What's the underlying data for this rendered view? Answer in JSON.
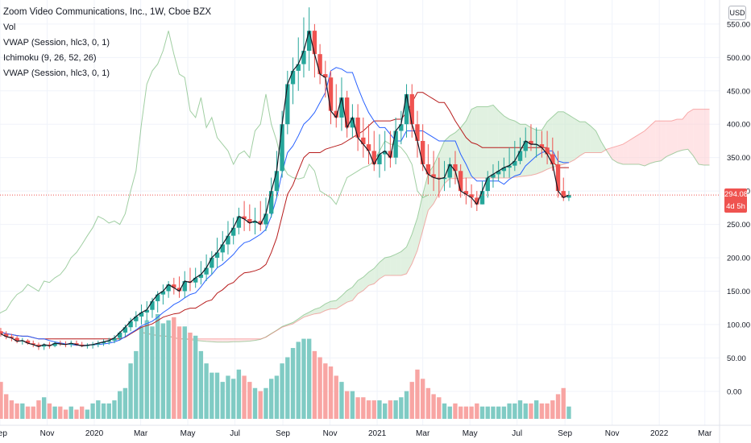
{
  "header": {
    "title": "Zoom Video Communications, Inc., 1W, Cboe BZX",
    "indicators": [
      "Vol",
      "VWAP (Session, hlc3, 0, 1)",
      "Ichimoku (9, 26, 52, 26)",
      "VWAP (Session, hlc3, 0, 1)"
    ],
    "currency": "USD"
  },
  "price_label": {
    "value": "294.08",
    "countdown": "4d 5h"
  },
  "colors": {
    "up": "#26a69a",
    "down": "#ef5350",
    "vwap": "#e91e63",
    "conversion": "#2962ff",
    "base": "#b71c1c",
    "lagging": "#43a047",
    "cloud_up": "#c8e6c9",
    "cloud_down": "#ffcdd2",
    "volume_up": "#80cbc4",
    "volume_down": "#f8a5a3"
  },
  "chart_data": {
    "type": "candlestick",
    "title": "Zoom Video Communications, Inc., 1W, Cboe BZX",
    "y_ticks": [
      "550.00",
      "500.00",
      "450.00",
      "400.00",
      "350.00",
      "300.00",
      "250.00",
      "200.00",
      "150.00",
      "100.00",
      "50.00",
      "0.00"
    ],
    "y_tick_values": [
      550,
      500,
      450,
      400,
      350,
      300,
      250,
      200,
      150,
      100,
      50,
      0
    ],
    "x_ticks": [
      "Sep",
      "Nov",
      "2020",
      "Mar",
      "May",
      "Jul",
      "Sep",
      "Nov",
      "2021",
      "Mar",
      "May",
      "Jul",
      "Sep",
      "Nov",
      "2022",
      "Mar"
    ],
    "x_tick_dates": [
      "2019-09-01",
      "2019-11-01",
      "2020-01-01",
      "2020-03-01",
      "2020-05-01",
      "2020-07-01",
      "2020-09-01",
      "2020-11-01",
      "2021-01-01",
      "2021-03-01",
      "2021-05-01",
      "2021-07-01",
      "2021-09-01",
      "2021-11-01",
      "2022-01-01",
      "2022-03-01"
    ],
    "x_range": [
      "2019-09-01",
      "2022-03-20"
    ],
    "ylim": [
      -40,
      580
    ],
    "ohlc": {
      "dates": [
        "2019-09-02",
        "2019-09-09",
        "2019-09-16",
        "2019-09-23",
        "2019-09-30",
        "2019-10-07",
        "2019-10-14",
        "2019-10-21",
        "2019-10-28",
        "2019-11-04",
        "2019-11-11",
        "2019-11-18",
        "2019-11-25",
        "2019-12-02",
        "2019-12-09",
        "2019-12-16",
        "2019-12-23",
        "2019-12-30",
        "2020-01-06",
        "2020-01-13",
        "2020-01-20",
        "2020-01-27",
        "2020-02-03",
        "2020-02-10",
        "2020-02-17",
        "2020-02-24",
        "2020-03-02",
        "2020-03-09",
        "2020-03-16",
        "2020-03-23",
        "2020-03-30",
        "2020-04-06",
        "2020-04-13",
        "2020-04-20",
        "2020-04-27",
        "2020-05-04",
        "2020-05-11",
        "2020-05-18",
        "2020-05-25",
        "2020-06-01",
        "2020-06-08",
        "2020-06-15",
        "2020-06-22",
        "2020-06-29",
        "2020-07-06",
        "2020-07-13",
        "2020-07-20",
        "2020-07-27",
        "2020-08-03",
        "2020-08-10",
        "2020-08-17",
        "2020-08-24",
        "2020-08-31",
        "2020-09-07",
        "2020-09-14",
        "2020-09-21",
        "2020-09-28",
        "2020-10-05",
        "2020-10-12",
        "2020-10-19",
        "2020-10-26",
        "2020-11-02",
        "2020-11-09",
        "2020-11-16",
        "2020-11-23",
        "2020-11-30",
        "2020-12-07",
        "2020-12-14",
        "2020-12-21",
        "2020-12-28",
        "2021-01-04",
        "2021-01-11",
        "2021-01-18",
        "2021-01-25",
        "2021-02-01",
        "2021-02-08",
        "2021-02-15",
        "2021-02-22",
        "2021-03-01",
        "2021-03-08",
        "2021-03-15",
        "2021-03-22",
        "2021-03-29",
        "2021-04-05",
        "2021-04-12",
        "2021-04-19",
        "2021-04-26",
        "2021-05-03",
        "2021-05-10",
        "2021-05-17",
        "2021-05-24",
        "2021-05-31",
        "2021-06-07",
        "2021-06-14",
        "2021-06-21",
        "2021-06-28",
        "2021-07-05",
        "2021-07-12",
        "2021-07-19",
        "2021-07-26",
        "2021-08-02",
        "2021-08-09",
        "2021-08-16",
        "2021-08-23",
        "2021-08-30",
        "2021-09-06"
      ],
      "open": [
        90,
        86,
        82,
        80,
        75,
        76,
        72,
        70,
        67,
        70,
        68,
        72,
        71,
        70,
        72,
        70,
        68,
        69,
        70,
        72,
        74,
        76,
        80,
        88,
        96,
        105,
        112,
        118,
        122,
        135,
        145,
        150,
        160,
        155,
        150,
        165,
        163,
        170,
        175,
        185,
        200,
        208,
        220,
        233,
        245,
        262,
        258,
        252,
        255,
        250,
        266,
        300,
        330,
        400,
        460,
        480,
        490,
        510,
        540,
        505,
        475,
        470,
        420,
        410,
        440,
        395,
        410,
        380,
        370,
        360,
        340,
        355,
        360,
        350,
        390,
        400,
        445,
        400,
        375,
        340,
        325,
        320,
        318,
        320,
        340,
        330,
        300,
        295,
        290,
        280,
        300,
        320,
        325,
        330,
        335,
        338,
        345,
        360,
        375,
        370,
        370,
        365,
        355,
        340,
        300,
        290
      ],
      "high": [
        95,
        90,
        86,
        83,
        80,
        78,
        76,
        73,
        72,
        74,
        75,
        76,
        75,
        76,
        76,
        74,
        72,
        74,
        76,
        78,
        80,
        84,
        90,
        100,
        110,
        120,
        130,
        135,
        140,
        150,
        160,
        165,
        170,
        172,
        180,
        185,
        185,
        195,
        205,
        210,
        230,
        240,
        255,
        260,
        275,
        285,
        280,
        275,
        285,
        290,
        320,
        360,
        420,
        480,
        500,
        530,
        560,
        575,
        550,
        520,
        495,
        480,
        460,
        470,
        450,
        430,
        430,
        410,
        400,
        390,
        385,
        390,
        390,
        410,
        420,
        460,
        460,
        420,
        400,
        370,
        360,
        350,
        345,
        350,
        360,
        340,
        320,
        310,
        300,
        315,
        330,
        340,
        345,
        350,
        365,
        375,
        380,
        395,
        400,
        395,
        390,
        390,
        380,
        360,
        320,
        300
      ],
      "low": [
        82,
        78,
        75,
        72,
        70,
        70,
        66,
        62,
        62,
        64,
        66,
        68,
        66,
        66,
        68,
        66,
        64,
        64,
        66,
        68,
        70,
        72,
        76,
        82,
        90,
        96,
        100,
        105,
        110,
        118,
        130,
        140,
        145,
        140,
        140,
        150,
        155,
        160,
        165,
        175,
        185,
        195,
        205,
        220,
        235,
        240,
        240,
        235,
        240,
        240,
        260,
        290,
        320,
        385,
        430,
        450,
        470,
        480,
        470,
        460,
        440,
        400,
        395,
        390,
        380,
        380,
        360,
        350,
        340,
        330,
        320,
        330,
        335,
        340,
        370,
        380,
        380,
        350,
        330,
        310,
        300,
        290,
        300,
        305,
        310,
        290,
        280,
        275,
        270,
        280,
        290,
        305,
        315,
        320,
        320,
        330,
        340,
        350,
        360,
        350,
        350,
        340,
        330,
        290,
        285,
        285
      ],
      "close": [
        86,
        82,
        80,
        75,
        76,
        72,
        70,
        67,
        70,
        68,
        72,
        71,
        70,
        72,
        70,
        68,
        69,
        70,
        72,
        74,
        76,
        80,
        88,
        96,
        105,
        112,
        118,
        122,
        135,
        145,
        150,
        160,
        155,
        150,
        165,
        163,
        170,
        175,
        185,
        200,
        208,
        220,
        233,
        245,
        262,
        258,
        252,
        255,
        250,
        266,
        300,
        330,
        400,
        460,
        480,
        490,
        510,
        540,
        505,
        475,
        470,
        420,
        410,
        440,
        395,
        410,
        380,
        370,
        360,
        340,
        355,
        360,
        350,
        390,
        400,
        445,
        400,
        375,
        340,
        325,
        320,
        318,
        320,
        340,
        330,
        300,
        295,
        290,
        280,
        300,
        320,
        325,
        330,
        335,
        338,
        345,
        360,
        375,
        370,
        370,
        365,
        355,
        340,
        300,
        290,
        294
      ]
    },
    "volume": [
      12,
      8,
      6,
      5,
      5,
      4,
      4,
      6,
      7,
      5,
      4,
      4,
      3,
      4,
      3,
      4,
      3,
      5,
      6,
      5,
      5,
      6,
      9,
      10,
      18,
      22,
      30,
      32,
      30,
      34,
      31,
      32,
      33,
      30,
      30,
      28,
      27,
      22,
      18,
      15,
      15,
      12,
      14,
      13,
      16,
      14,
      12,
      10,
      9,
      10,
      13,
      14,
      18,
      20,
      23,
      25,
      26,
      26,
      22,
      20,
      18,
      17,
      14,
      12,
      9,
      9,
      7,
      7,
      6,
      6,
      6,
      5,
      6,
      6,
      7,
      9,
      12,
      16,
      13,
      10,
      8,
      7,
      5,
      4,
      5,
      4,
      4,
      4,
      5,
      4,
      4,
      4,
      4,
      4,
      5,
      5,
      6,
      5,
      5,
      6,
      5,
      5,
      6,
      8,
      10,
      4
    ],
    "volume_axis_ticks": [
      "50.00",
      "0.00"
    ]
  }
}
